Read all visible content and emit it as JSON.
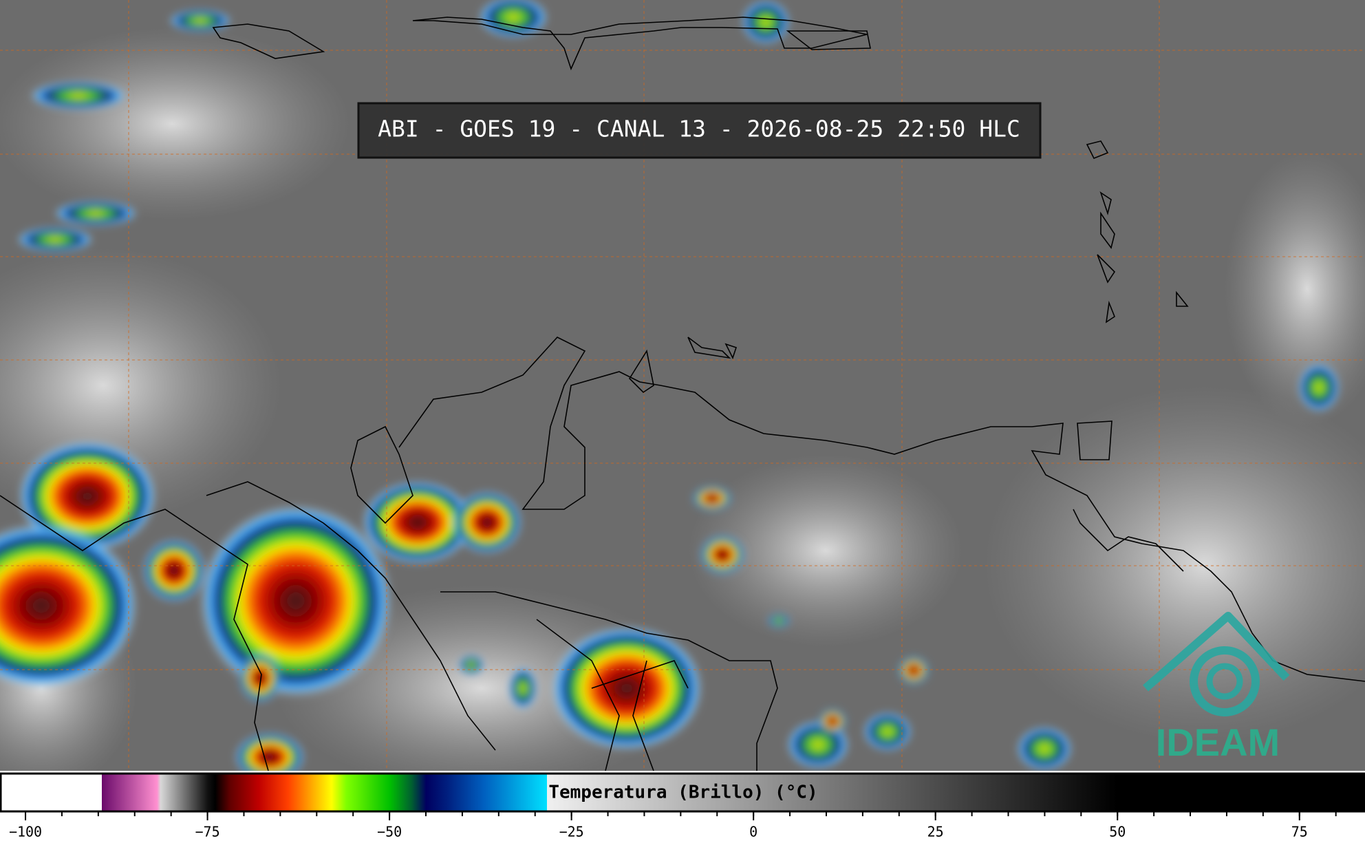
{
  "header": {
    "title": "ABI - GOES 19 - CANAL 13 - 2026-08-25 22:50 HLC"
  },
  "logo": {
    "text": "IDEAM"
  },
  "colorbar": {
    "label": "Temperatura (Brillo) (°C)",
    "lim": [
      -103.5,
      84
    ],
    "ticks": [
      {
        "value": -100,
        "label": "−100"
      },
      {
        "value": -75,
        "label": "−75"
      },
      {
        "value": -50,
        "label": "−50"
      },
      {
        "value": -25,
        "label": "−25"
      },
      0,
      25,
      50,
      75
    ],
    "minor_ticks": [
      -100,
      -95,
      -90,
      -85,
      -80,
      -75,
      -70,
      -65,
      -60,
      -55,
      -50,
      -45,
      -40,
      -35,
      -30,
      -25,
      -20,
      -15,
      -10,
      -5,
      0,
      5,
      10,
      15,
      20,
      25,
      30,
      35,
      40,
      45,
      50,
      55,
      60,
      65,
      70,
      75,
      80
    ],
    "colormap": [
      {
        "value": -103.5,
        "color": "#ffffff"
      },
      {
        "value": -89.6,
        "color": "#ffffff"
      },
      {
        "value": -89.6,
        "color": "#6a0a6a"
      },
      {
        "value": -82,
        "color": "#ff90d0"
      },
      {
        "value": -81.5,
        "color": "#d8d8d8"
      },
      {
        "value": -75,
        "color": "#101010"
      },
      {
        "value": -74,
        "color": "#000000"
      },
      {
        "value": -72,
        "color": "#600000"
      },
      {
        "value": -68,
        "color": "#c00000"
      },
      {
        "value": -64,
        "color": "#ff4000"
      },
      {
        "value": -61,
        "color": "#ffa000"
      },
      {
        "value": -58,
        "color": "#ffff00"
      },
      {
        "value": -56,
        "color": "#80ff00"
      },
      {
        "value": -50,
        "color": "#00c000"
      },
      {
        "value": -47,
        "color": "#006030"
      },
      {
        "value": -45,
        "color": "#000060"
      },
      {
        "value": -42,
        "color": "#002080"
      },
      {
        "value": -37,
        "color": "#0060c0"
      },
      {
        "value": -28.4,
        "color": "#00e0ff"
      },
      {
        "value": -28.4,
        "color": "#f0f0f0"
      },
      {
        "value": 50,
        "color": "#000000"
      },
      {
        "value": 84,
        "color": "#000000"
      }
    ]
  }
}
